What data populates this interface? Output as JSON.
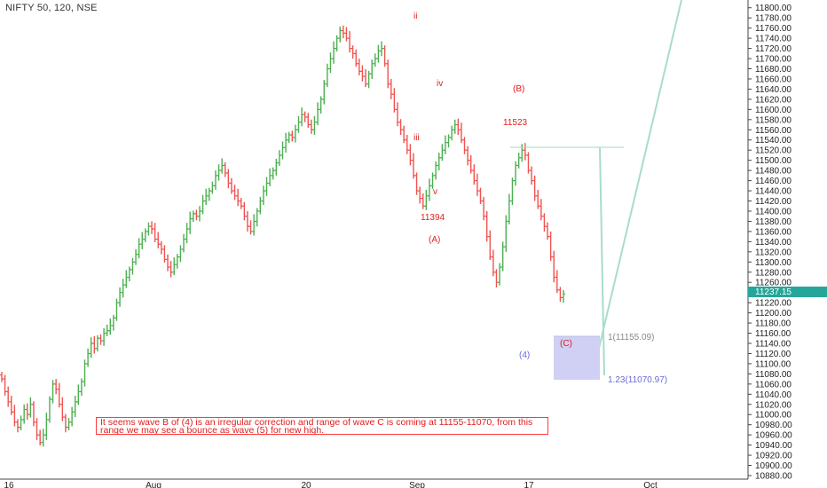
{
  "header": {
    "title": "NIFTY 50, 120, NSE"
  },
  "colors": {
    "up": "#4caf50",
    "down": "#ef5350",
    "label_red": "#e11d1d",
    "label_blue": "#6a6ad8",
    "target_box": "#cfd0f4",
    "projection": "#a9dcc9",
    "price_badge": "#26a69a"
  },
  "chart_data": {
    "type": "ohlc-bar",
    "title": "NIFTY 50, 120, NSE",
    "price_axis": {
      "ylim": [
        10880,
        11810
      ],
      "ticks": [
        "11800.00",
        "11780.00",
        "11760.00",
        "11740.00",
        "11720.00",
        "11700.00",
        "11680.00",
        "11660.00",
        "11640.00",
        "11620.00",
        "11600.00",
        "11580.00",
        "11560.00",
        "11540.00",
        "11520.00",
        "11500.00",
        "11480.00",
        "11460.00",
        "11440.00",
        "11420.00",
        "11400.00",
        "11380.00",
        "11360.00",
        "11340.00",
        "11320.00",
        "11300.00",
        "11280.00",
        "11260.00",
        "11240.00",
        "11220.00",
        "11200.00",
        "11180.00",
        "11160.00",
        "11140.00",
        "11120.00",
        "11100.00",
        "11080.00",
        "11060.00",
        "11040.00",
        "11020.00",
        "11000.00",
        "10980.00",
        "10960.00",
        "10940.00",
        "10920.00",
        "10900.00",
        "10880.00"
      ]
    },
    "time_axis": {
      "ticks": [
        "16",
        "Aug",
        "20",
        "Sep",
        "17",
        "Oct"
      ]
    },
    "current_price": "11237.15",
    "closes": [
      11070,
      11045,
      11025,
      11005,
      10985,
      10975,
      10990,
      11010,
      11000,
      11020,
      10985,
      10960,
      10945,
      10960,
      10990,
      11030,
      11060,
      11050,
      11020,
      10995,
      10975,
      10985,
      11005,
      11025,
      11045,
      11065,
      11100,
      11120,
      11140,
      11130,
      11150,
      11145,
      11160,
      11165,
      11175,
      11190,
      11220,
      11240,
      11255,
      11270,
      11285,
      11300,
      11315,
      11335,
      11345,
      11360,
      11370,
      11365,
      11345,
      11335,
      11325,
      11305,
      11290,
      11280,
      11295,
      11310,
      11325,
      11345,
      11365,
      11385,
      11395,
      11390,
      11400,
      11420,
      11430,
      11440,
      11450,
      11470,
      11480,
      11490,
      11475,
      11455,
      11440,
      11430,
      11420,
      11410,
      11390,
      11370,
      11360,
      11380,
      11400,
      11420,
      11440,
      11455,
      11470,
      11480,
      11495,
      11510,
      11525,
      11540,
      11550,
      11545,
      11560,
      11575,
      11590,
      11585,
      11570,
      11560,
      11575,
      11600,
      11620,
      11650,
      11680,
      11700,
      11720,
      11740,
      11755,
      11750,
      11740,
      11720,
      11710,
      11690,
      11675,
      11665,
      11650,
      11670,
      11690,
      11700,
      11715,
      11720,
      11690,
      11650,
      11630,
      11600,
      11575,
      11560,
      11540,
      11520,
      11500,
      11470,
      11440,
      11425,
      11410,
      11430,
      11450,
      11470,
      11490,
      11505,
      11520,
      11535,
      11545,
      11560,
      11570,
      11560,
      11540,
      11520,
      11500,
      11480,
      11460,
      11440,
      11420,
      11390,
      11350,
      11310,
      11280,
      11260,
      11290,
      11330,
      11380,
      11420,
      11460,
      11490,
      11505,
      11520,
      11510,
      11480,
      11460,
      11430,
      11410,
      11390,
      11370,
      11350,
      11310,
      11270,
      11245,
      11230,
      11237
    ],
    "annotations": {
      "ii": "ii",
      "iv": "iv",
      "iii": "iii",
      "v": "v",
      "low_A_value": "11394",
      "wave_A": "(A)",
      "wave_B": "(B)",
      "high_B_value": "11523",
      "wave_C": "(C)",
      "wave_4": "(4)",
      "fib_1": "1(11155.09)",
      "fib_123": "1.23(11070.97)"
    },
    "note": "It seems wave B of (4) is an irregular correction and range of wave C is coming at 11155-11070, from this range we may see a bounce as wave (5) for new high."
  }
}
